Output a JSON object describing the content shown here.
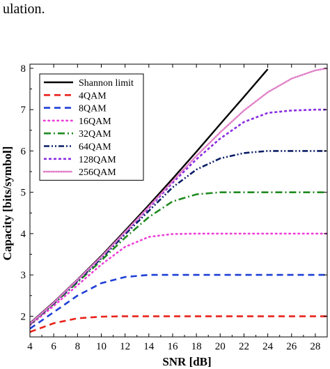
{
  "header_text": "ulation.",
  "chart_data": {
    "type": "line",
    "title": "",
    "xlabel": "SNR [dB]",
    "ylabel": "Capacity [bits/symbol]",
    "xlim": [
      4,
      29
    ],
    "ylim": [
      1.5,
      8.1
    ],
    "xticks": [
      4,
      6,
      8,
      10,
      12,
      14,
      16,
      18,
      20,
      22,
      24,
      26,
      28
    ],
    "yticks": [
      2,
      3,
      4,
      5,
      6,
      7,
      8
    ],
    "grid": false,
    "legend_position": "top-left",
    "series": [
      {
        "name": "Shannon limit",
        "color": "#000000",
        "dash": "solid",
        "x": [
          4,
          6,
          8,
          10,
          12,
          14,
          16,
          18,
          20,
          22,
          24
        ],
        "y": [
          1.83,
          2.34,
          2.89,
          3.46,
          4.07,
          4.69,
          5.33,
          5.98,
          6.65,
          7.31,
          7.98
        ]
      },
      {
        "name": "4QAM",
        "color": "#e8231a",
        "dash": "long-dash",
        "x": [
          4,
          6,
          8,
          10,
          12,
          14,
          16,
          18,
          20,
          22,
          24,
          26,
          28,
          29
        ],
        "y": [
          1.62,
          1.83,
          1.95,
          1.99,
          2.0,
          2.0,
          2.0,
          2.0,
          2.0,
          2.0,
          2.0,
          2.0,
          2.0,
          2.0
        ]
      },
      {
        "name": "8QAM",
        "color": "#1f3fd6",
        "dash": "long-dash",
        "x": [
          4,
          6,
          8,
          10,
          12,
          14,
          16,
          18,
          20,
          22,
          24,
          26,
          28,
          29
        ],
        "y": [
          1.7,
          2.1,
          2.5,
          2.8,
          2.95,
          3.0,
          3.0,
          3.0,
          3.0,
          3.0,
          3.0,
          3.0,
          3.0,
          3.0
        ]
      },
      {
        "name": "16QAM",
        "color": "#ee3ed6",
        "dash": "dotted",
        "x": [
          4,
          6,
          8,
          10,
          12,
          14,
          16,
          18,
          20,
          22,
          24,
          26,
          28,
          29
        ],
        "y": [
          1.78,
          2.25,
          2.75,
          3.25,
          3.68,
          3.92,
          3.99,
          4.0,
          4.0,
          4.0,
          4.0,
          4.0,
          4.0,
          4.0
        ]
      },
      {
        "name": "32QAM",
        "color": "#1f8a1f",
        "dash": "dash-dot",
        "x": [
          4,
          6,
          8,
          10,
          12,
          14,
          16,
          18,
          20,
          22,
          24,
          26,
          28,
          29
        ],
        "y": [
          1.8,
          2.3,
          2.82,
          3.35,
          3.9,
          4.4,
          4.78,
          4.95,
          5.0,
          5.0,
          5.0,
          5.0,
          5.0,
          5.0
        ]
      },
      {
        "name": "64QAM",
        "color": "#0b1e66",
        "dash": "dash-dot-dot",
        "x": [
          4,
          6,
          8,
          10,
          12,
          14,
          16,
          18,
          20,
          22,
          24,
          26,
          28,
          29
        ],
        "y": [
          1.81,
          2.31,
          2.85,
          3.4,
          3.98,
          4.55,
          5.12,
          5.55,
          5.82,
          5.95,
          6.0,
          6.0,
          6.0,
          6.0
        ]
      },
      {
        "name": "128QAM",
        "color": "#8a2be2",
        "dash": "short-dash",
        "x": [
          4,
          6,
          8,
          10,
          12,
          14,
          16,
          18,
          20,
          22,
          24,
          26,
          28,
          29
        ],
        "y": [
          1.82,
          2.32,
          2.87,
          3.43,
          4.02,
          4.62,
          5.23,
          5.8,
          6.3,
          6.7,
          6.92,
          6.98,
          7.0,
          7.0
        ]
      },
      {
        "name": "256QAM",
        "color": "#e080c8",
        "dash": "fine-dot",
        "x": [
          4,
          6,
          8,
          10,
          12,
          14,
          16,
          18,
          20,
          22,
          24,
          26,
          28,
          29
        ],
        "y": [
          1.82,
          2.33,
          2.88,
          3.44,
          4.04,
          4.65,
          5.27,
          5.88,
          6.45,
          6.98,
          7.42,
          7.75,
          7.95,
          8.0
        ]
      }
    ]
  }
}
